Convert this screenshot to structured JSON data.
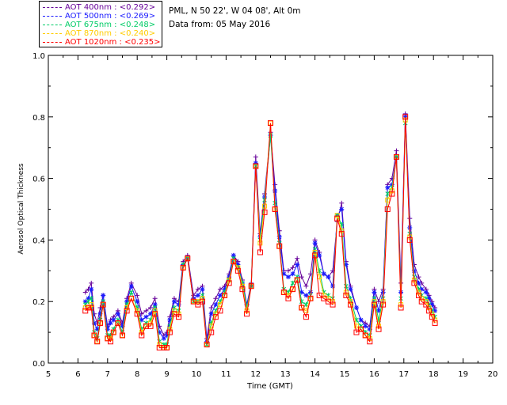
{
  "legend": [
    {
      "wl": "AOT  400nm",
      "mean": "<0.292>",
      "color": "#660099"
    },
    {
      "wl": "AOT  500nm",
      "mean": "<0.269>",
      "color": "#1a1aff"
    },
    {
      "wl": "AOT  675nm",
      "mean": "<0.248>",
      "color": "#00cc66"
    },
    {
      "wl": "AOT  870nm",
      "mean": "<0.240>",
      "color": "#ffcc00"
    },
    {
      "wl": "AOT 1020nm",
      "mean": "<0.235>",
      "color": "#ff0000"
    }
  ],
  "info": {
    "location": "PML, N 50 22', W 04 08', Alt 0m",
    "date": "Data from: 05 May 2016"
  },
  "chart_data": {
    "type": "line",
    "xlabel": "Time (GMT)",
    "ylabel": "Aerosol Optical Thickness",
    "xlim": [
      5,
      20
    ],
    "ylim": [
      0.0,
      1.0
    ],
    "xticks": [
      "5",
      "6",
      "7",
      "8",
      "9",
      "10",
      "11",
      "12",
      "13",
      "14",
      "15",
      "16",
      "17",
      "18",
      "19",
      "20"
    ],
    "yticks": [
      "0.0",
      "0.2",
      "0.4",
      "0.6",
      "0.8",
      "1.0"
    ],
    "grid": false,
    "x": [
      6.25,
      6.35,
      6.45,
      6.55,
      6.65,
      6.75,
      6.85,
      7.0,
      7.1,
      7.2,
      7.35,
      7.5,
      7.65,
      7.8,
      8.0,
      8.15,
      8.3,
      8.45,
      8.6,
      8.75,
      8.9,
      9.0,
      9.1,
      9.25,
      9.4,
      9.55,
      9.7,
      9.9,
      10.05,
      10.2,
      10.35,
      10.5,
      10.65,
      10.8,
      10.95,
      11.1,
      11.25,
      11.4,
      11.55,
      11.7,
      11.85,
      12.0,
      12.15,
      12.3,
      12.5,
      12.65,
      12.8,
      12.95,
      13.1,
      13.25,
      13.4,
      13.55,
      13.7,
      13.85,
      14.0,
      14.15,
      14.3,
      14.45,
      14.6,
      14.75,
      14.9,
      15.05,
      15.2,
      15.4,
      15.55,
      15.7,
      15.85,
      16.0,
      16.15,
      16.3,
      16.45,
      16.6,
      16.75,
      16.9,
      17.05,
      17.2,
      17.35,
      17.5,
      17.6,
      17.75,
      17.85,
      17.95,
      18.05
    ],
    "series": [
      {
        "name": "AOT  400nm",
        "values": [
          0.23,
          0.24,
          0.26,
          0.16,
          0.13,
          0.18,
          0.22,
          0.12,
          0.14,
          0.15,
          0.17,
          0.13,
          0.21,
          0.26,
          0.22,
          0.16,
          0.17,
          0.18,
          0.21,
          0.12,
          0.09,
          0.1,
          0.15,
          0.21,
          0.2,
          0.33,
          0.35,
          0.22,
          0.24,
          0.25,
          0.08,
          0.18,
          0.21,
          0.24,
          0.25,
          0.29,
          0.35,
          0.33,
          0.27,
          0.19,
          0.26,
          0.67,
          0.42,
          0.55,
          0.75,
          0.58,
          0.43,
          0.3,
          0.3,
          0.31,
          0.34,
          0.28,
          0.25,
          0.29,
          0.4,
          0.36,
          0.29,
          0.28,
          0.3,
          0.46,
          0.52,
          0.33,
          0.25,
          0.18,
          0.14,
          0.13,
          0.12,
          0.24,
          0.2,
          0.24,
          0.58,
          0.6,
          0.69,
          0.26,
          0.81,
          0.47,
          0.32,
          0.28,
          0.26,
          0.24,
          0.22,
          0.2,
          0.18
        ]
      },
      {
        "name": "AOT  500nm",
        "values": [
          0.2,
          0.21,
          0.24,
          0.13,
          0.11,
          0.16,
          0.22,
          0.11,
          0.13,
          0.14,
          0.16,
          0.12,
          0.2,
          0.25,
          0.2,
          0.14,
          0.15,
          0.16,
          0.19,
          0.1,
          0.08,
          0.09,
          0.14,
          0.2,
          0.19,
          0.32,
          0.34,
          0.21,
          0.22,
          0.24,
          0.07,
          0.16,
          0.19,
          0.22,
          0.24,
          0.28,
          0.35,
          0.32,
          0.26,
          0.19,
          0.25,
          0.65,
          0.41,
          0.54,
          0.74,
          0.56,
          0.41,
          0.29,
          0.28,
          0.29,
          0.32,
          0.23,
          0.22,
          0.23,
          0.39,
          0.35,
          0.29,
          0.28,
          0.25,
          0.48,
          0.5,
          0.32,
          0.24,
          0.18,
          0.14,
          0.12,
          0.11,
          0.23,
          0.17,
          0.23,
          0.57,
          0.58,
          0.67,
          0.23,
          0.8,
          0.44,
          0.3,
          0.26,
          0.24,
          0.23,
          0.21,
          0.19,
          0.17
        ]
      },
      {
        "name": "AOT  675nm",
        "values": [
          0.19,
          0.2,
          0.21,
          0.1,
          0.08,
          0.14,
          0.2,
          0.09,
          0.09,
          0.11,
          0.14,
          0.1,
          0.19,
          0.23,
          0.18,
          0.11,
          0.13,
          0.14,
          0.18,
          0.07,
          0.06,
          0.06,
          0.12,
          0.18,
          0.17,
          0.32,
          0.34,
          0.2,
          0.2,
          0.22,
          0.06,
          0.13,
          0.17,
          0.2,
          0.23,
          0.27,
          0.34,
          0.31,
          0.26,
          0.18,
          0.25,
          0.64,
          0.4,
          0.53,
          0.74,
          0.52,
          0.39,
          0.24,
          0.23,
          0.26,
          0.28,
          0.2,
          0.19,
          0.22,
          0.37,
          0.3,
          0.23,
          0.22,
          0.21,
          0.48,
          0.45,
          0.25,
          0.21,
          0.14,
          0.12,
          0.1,
          0.09,
          0.21,
          0.14,
          0.21,
          0.55,
          0.57,
          0.67,
          0.21,
          0.78,
          0.42,
          0.28,
          0.24,
          0.22,
          0.21,
          0.19,
          0.17,
          0.15
        ]
      },
      {
        "name": "AOT  870nm",
        "values": [
          0.18,
          0.18,
          0.19,
          0.09,
          0.07,
          0.13,
          0.19,
          0.08,
          0.08,
          0.1,
          0.13,
          0.09,
          0.18,
          0.21,
          0.17,
          0.1,
          0.12,
          0.13,
          0.17,
          0.06,
          0.05,
          0.05,
          0.11,
          0.17,
          0.16,
          0.31,
          0.34,
          0.2,
          0.2,
          0.21,
          0.06,
          0.12,
          0.16,
          0.19,
          0.22,
          0.27,
          0.33,
          0.31,
          0.25,
          0.17,
          0.25,
          0.64,
          0.39,
          0.51,
          0.78,
          0.5,
          0.38,
          0.23,
          0.22,
          0.24,
          0.27,
          0.18,
          0.17,
          0.21,
          0.36,
          0.28,
          0.22,
          0.21,
          0.2,
          0.48,
          0.43,
          0.23,
          0.2,
          0.12,
          0.11,
          0.09,
          0.08,
          0.2,
          0.12,
          0.2,
          0.53,
          0.56,
          0.67,
          0.19,
          0.79,
          0.41,
          0.27,
          0.23,
          0.21,
          0.2,
          0.18,
          0.16,
          0.14
        ]
      },
      {
        "name": "AOT 1020nm",
        "values": [
          0.17,
          0.18,
          0.18,
          0.09,
          0.07,
          0.13,
          0.19,
          0.08,
          0.07,
          0.1,
          0.13,
          0.09,
          0.17,
          0.21,
          0.16,
          0.09,
          0.12,
          0.12,
          0.16,
          0.05,
          0.05,
          0.05,
          0.1,
          0.16,
          0.15,
          0.31,
          0.34,
          0.2,
          0.19,
          0.2,
          0.06,
          0.1,
          0.15,
          0.17,
          0.22,
          0.26,
          0.33,
          0.3,
          0.24,
          0.16,
          0.25,
          0.64,
          0.36,
          0.49,
          0.78,
          0.5,
          0.38,
          0.23,
          0.21,
          0.24,
          0.27,
          0.18,
          0.15,
          0.21,
          0.35,
          0.22,
          0.21,
          0.2,
          0.19,
          0.47,
          0.42,
          0.22,
          0.19,
          0.1,
          0.11,
          0.09,
          0.07,
          0.19,
          0.11,
          0.19,
          0.5,
          0.55,
          0.67,
          0.18,
          0.8,
          0.4,
          0.26,
          0.22,
          0.2,
          0.19,
          0.17,
          0.15,
          0.13
        ]
      }
    ]
  }
}
